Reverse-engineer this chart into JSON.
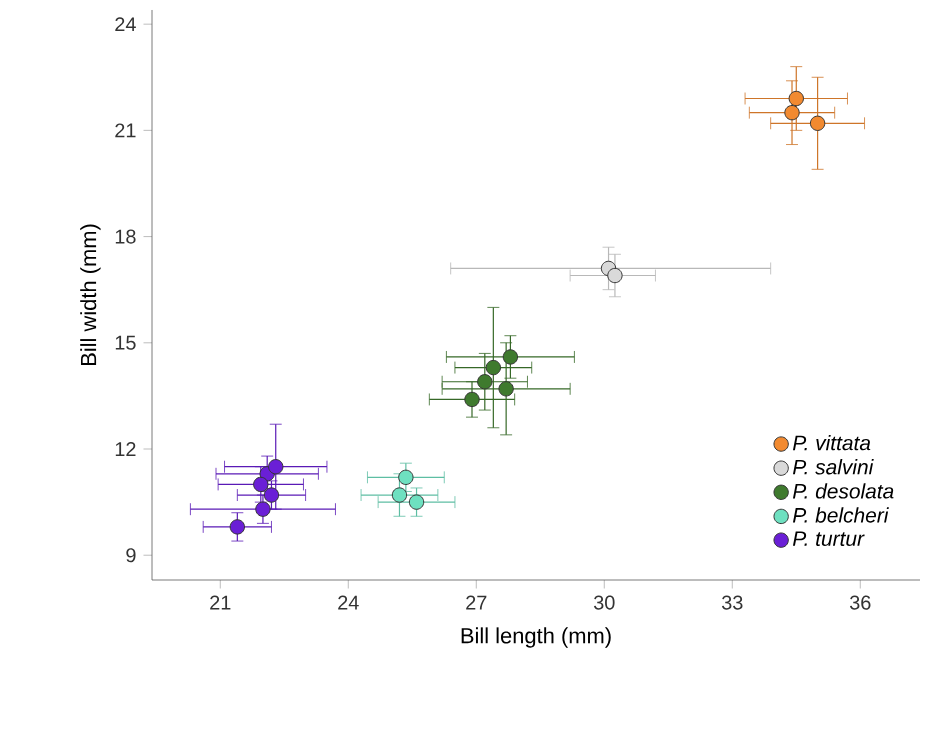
{
  "chart_data": {
    "type": "scatter",
    "xlabel": "Bill length (mm)",
    "ylabel": "Bill width (mm)",
    "xlim": [
      19.4,
      37.4
    ],
    "ylim": [
      8.3,
      24.4
    ],
    "xticks": [
      21,
      24,
      27,
      30,
      33,
      36
    ],
    "yticks": [
      9,
      12,
      15,
      18,
      21,
      24
    ],
    "grid": false,
    "legend": "bottom right",
    "marker": "circle",
    "series": [
      {
        "name": "P. vittata",
        "color": "#f28a30",
        "x": [
          34.5,
          34.4,
          35.0
        ],
        "values": [
          21.9,
          21.5,
          21.2
        ],
        "xerrors": [
          1.2,
          1.0,
          1.1
        ],
        "errors": [
          0.9,
          0.9,
          1.3
        ]
      },
      {
        "name": "P. salvini",
        "color": "#d9d9d9",
        "x": [
          30.1,
          30.25
        ],
        "values": [
          17.1,
          16.9
        ],
        "xerrors": [
          [
            26.4,
            33.9
          ],
          [
            29.2,
            31.2
          ]
        ],
        "errors": [
          0.6,
          0.6
        ]
      },
      {
        "name": "P. desolata",
        "color": "#3f7a2e",
        "x": [
          27.8,
          27.4,
          27.2,
          27.7,
          26.9
        ],
        "values": [
          14.6,
          14.3,
          13.9,
          13.7,
          13.4
        ],
        "xerrors": [
          1.5,
          0.9,
          1.0,
          1.5,
          1.0
        ],
        "errors": [
          0.6,
          1.7,
          0.8,
          1.3,
          0.5
        ]
      },
      {
        "name": "P. belcheri",
        "color": "#6ee0c0",
        "x": [
          25.35,
          25.2,
          25.6
        ],
        "values": [
          11.2,
          10.7,
          10.5
        ],
        "xerrors": [
          0.9,
          0.9,
          0.9
        ],
        "errors": [
          0.4,
          0.6,
          0.4
        ]
      },
      {
        "name": "P. turtur",
        "color": "#6a1fd6",
        "x": [
          22.1,
          21.95,
          22.2,
          22.0,
          22.3,
          21.4
        ],
        "values": [
          11.3,
          11.0,
          10.7,
          10.3,
          11.5,
          9.8
        ],
        "xerrors": [
          1.2,
          1.0,
          0.8,
          1.7,
          1.2,
          0.8
        ],
        "errors": [
          0.5,
          0.5,
          0.4,
          0.4,
          1.2,
          0.4
        ]
      }
    ]
  }
}
